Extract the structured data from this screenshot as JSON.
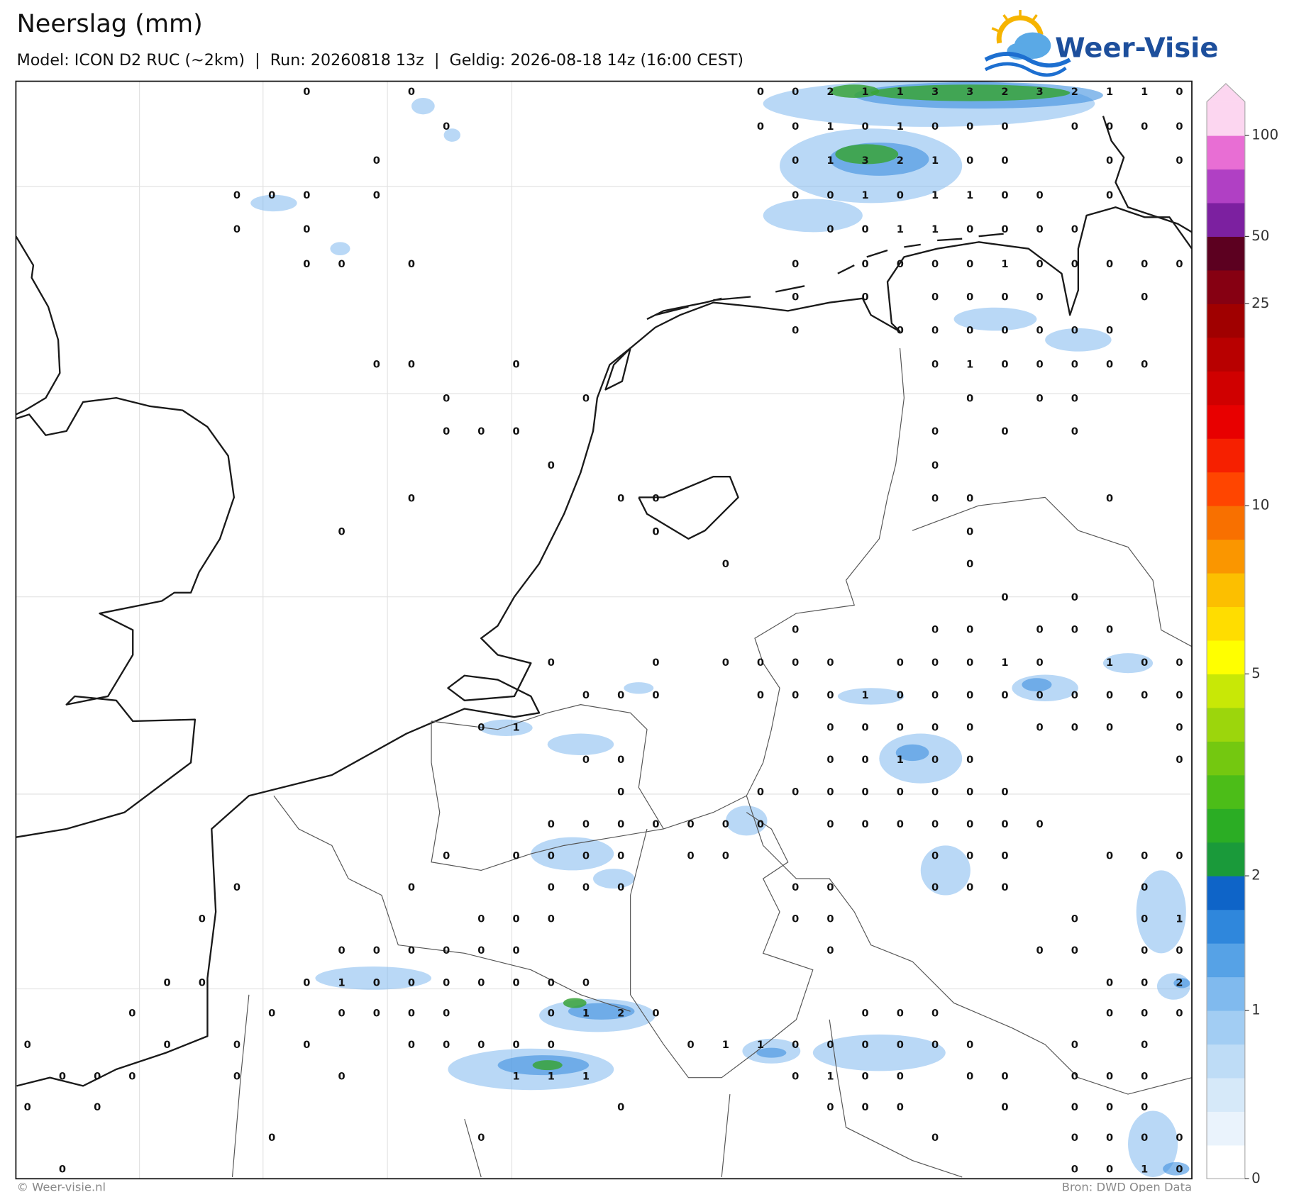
{
  "header": {
    "title": "Neerslag (mm)",
    "subtitle": "Model: ICON D2 RUC (~2km)  |  Run: 20260818 13z  |  Geldig: 2026-08-18 14z (16:00 CEST)"
  },
  "logo": "Weer-Visie",
  "map": {
    "stations": [
      [
        null,
        null,
        null,
        null,
        null,
        null,
        null,
        null,
        0,
        null,
        null,
        0,
        null,
        null,
        null,
        null,
        null,
        null,
        null,
        null,
        null,
        0,
        0,
        2,
        1,
        1,
        3,
        3,
        2,
        3,
        2,
        1,
        1,
        0
      ],
      [
        null,
        null,
        null,
        null,
        null,
        null,
        null,
        null,
        null,
        null,
        null,
        null,
        0,
        null,
        null,
        null,
        null,
        null,
        null,
        null,
        null,
        0,
        0,
        1,
        0,
        1,
        0,
        0,
        0,
        null,
        0,
        0,
        0,
        0
      ],
      [
        null,
        null,
        null,
        null,
        null,
        null,
        null,
        null,
        null,
        null,
        0,
        null,
        null,
        null,
        null,
        null,
        null,
        null,
        null,
        null,
        null,
        null,
        0,
        1,
        3,
        2,
        1,
        0,
        0,
        null,
        null,
        0,
        null,
        0
      ],
      [
        null,
        null,
        null,
        null,
        null,
        null,
        0,
        0,
        0,
        null,
        0,
        null,
        null,
        null,
        null,
        null,
        null,
        null,
        null,
        null,
        null,
        null,
        0,
        0,
        1,
        0,
        1,
        1,
        0,
        0,
        null,
        0,
        null,
        null
      ],
      [
        null,
        null,
        null,
        null,
        null,
        null,
        0,
        null,
        0,
        null,
        null,
        null,
        null,
        null,
        null,
        null,
        null,
        null,
        null,
        null,
        null,
        null,
        null,
        0,
        0,
        1,
        1,
        0,
        0,
        0,
        0,
        null,
        null,
        null
      ],
      [
        null,
        null,
        null,
        null,
        null,
        null,
        null,
        null,
        0,
        0,
        null,
        0,
        null,
        null,
        null,
        null,
        null,
        null,
        null,
        null,
        null,
        null,
        0,
        null,
        0,
        0,
        0,
        0,
        1,
        0,
        0,
        0,
        0,
        0
      ],
      [
        null,
        null,
        null,
        null,
        null,
        null,
        null,
        null,
        null,
        null,
        null,
        null,
        null,
        null,
        null,
        null,
        null,
        null,
        null,
        null,
        null,
        null,
        0,
        null,
        0,
        null,
        0,
        0,
        0,
        0,
        null,
        null,
        0,
        null
      ],
      [
        null,
        null,
        null,
        null,
        null,
        null,
        null,
        null,
        null,
        null,
        null,
        null,
        null,
        null,
        null,
        null,
        null,
        null,
        null,
        null,
        null,
        null,
        0,
        null,
        null,
        0,
        0,
        0,
        0,
        0,
        0,
        0,
        null,
        null
      ],
      [
        null,
        null,
        null,
        null,
        null,
        null,
        null,
        null,
        null,
        null,
        0,
        0,
        null,
        null,
        0,
        null,
        null,
        null,
        null,
        null,
        null,
        null,
        null,
        null,
        null,
        null,
        0,
        1,
        0,
        0,
        0,
        0,
        0,
        null
      ],
      [
        null,
        null,
        null,
        null,
        null,
        null,
        null,
        null,
        null,
        null,
        null,
        null,
        0,
        null,
        null,
        null,
        0,
        null,
        null,
        null,
        null,
        null,
        null,
        null,
        null,
        null,
        null,
        0,
        null,
        0,
        0,
        null,
        null,
        null
      ],
      [
        null,
        null,
        null,
        null,
        null,
        null,
        null,
        null,
        null,
        null,
        null,
        null,
        0,
        0,
        0,
        null,
        null,
        null,
        null,
        null,
        null,
        null,
        null,
        null,
        null,
        null,
        0,
        null,
        0,
        null,
        0,
        null,
        null,
        null
      ],
      [
        null,
        null,
        null,
        null,
        null,
        null,
        null,
        null,
        null,
        null,
        null,
        null,
        null,
        null,
        null,
        0,
        null,
        null,
        null,
        null,
        null,
        null,
        null,
        null,
        null,
        null,
        0,
        null,
        null,
        null,
        null,
        null,
        null,
        null
      ],
      [
        null,
        null,
        null,
        null,
        null,
        null,
        null,
        null,
        null,
        null,
        null,
        0,
        null,
        null,
        null,
        null,
        null,
        0,
        0,
        null,
        null,
        null,
        null,
        null,
        null,
        null,
        0,
        0,
        null,
        null,
        null,
        0,
        null,
        null
      ],
      [
        null,
        null,
        null,
        null,
        null,
        null,
        null,
        null,
        null,
        0,
        null,
        null,
        null,
        null,
        null,
        null,
        null,
        null,
        0,
        null,
        null,
        null,
        null,
        null,
        null,
        null,
        null,
        0,
        null,
        null,
        null,
        null,
        null,
        null
      ],
      [
        null,
        null,
        null,
        null,
        null,
        null,
        null,
        null,
        null,
        null,
        null,
        null,
        null,
        null,
        null,
        null,
        null,
        null,
        null,
        null,
        0,
        null,
        null,
        null,
        null,
        null,
        null,
        0,
        null,
        null,
        null,
        null,
        null,
        null
      ],
      [
        null,
        null,
        null,
        null,
        null,
        null,
        null,
        null,
        null,
        null,
        null,
        null,
        null,
        null,
        null,
        null,
        null,
        null,
        null,
        null,
        null,
        null,
        null,
        null,
        null,
        null,
        null,
        null,
        0,
        null,
        0,
        null,
        null,
        null
      ],
      [
        null,
        null,
        null,
        null,
        null,
        null,
        null,
        null,
        null,
        null,
        null,
        null,
        null,
        null,
        null,
        null,
        null,
        null,
        null,
        null,
        null,
        null,
        0,
        null,
        null,
        null,
        0,
        0,
        null,
        0,
        0,
        0,
        null,
        null
      ],
      [
        null,
        null,
        null,
        null,
        null,
        null,
        null,
        null,
        null,
        null,
        null,
        null,
        null,
        null,
        null,
        0,
        null,
        null,
        0,
        null,
        0,
        0,
        0,
        0,
        null,
        0,
        0,
        0,
        1,
        0,
        null,
        1,
        0,
        0
      ],
      [
        null,
        null,
        null,
        null,
        null,
        null,
        null,
        null,
        null,
        null,
        null,
        null,
        null,
        null,
        null,
        null,
        0,
        0,
        0,
        null,
        null,
        0,
        0,
        0,
        1,
        0,
        0,
        0,
        0,
        0,
        0,
        0,
        0,
        0
      ],
      [
        null,
        null,
        null,
        null,
        null,
        null,
        null,
        null,
        null,
        null,
        null,
        null,
        null,
        0,
        1,
        null,
        null,
        null,
        null,
        null,
        null,
        null,
        null,
        0,
        0,
        0,
        0,
        0,
        null,
        0,
        0,
        0,
        null,
        0
      ],
      [
        null,
        null,
        null,
        null,
        null,
        null,
        null,
        null,
        null,
        null,
        null,
        null,
        null,
        null,
        null,
        null,
        0,
        0,
        null,
        null,
        null,
        null,
        null,
        0,
        0,
        1,
        0,
        0,
        null,
        null,
        null,
        null,
        null,
        0
      ],
      [
        null,
        null,
        null,
        null,
        null,
        null,
        null,
        null,
        null,
        null,
        null,
        null,
        null,
        null,
        null,
        null,
        null,
        0,
        null,
        null,
        null,
        0,
        0,
        0,
        0,
        0,
        0,
        0,
        0,
        null,
        null,
        null,
        null,
        null
      ],
      [
        null,
        null,
        null,
        null,
        null,
        null,
        null,
        null,
        null,
        null,
        null,
        null,
        null,
        null,
        null,
        0,
        0,
        0,
        0,
        0,
        0,
        0,
        null,
        0,
        0,
        0,
        0,
        0,
        0,
        0,
        null,
        null,
        null,
        null
      ],
      [
        null,
        null,
        null,
        null,
        null,
        null,
        null,
        null,
        null,
        null,
        null,
        null,
        0,
        null,
        0,
        0,
        0,
        0,
        null,
        0,
        0,
        null,
        null,
        null,
        null,
        null,
        0,
        0,
        0,
        null,
        null,
        0,
        0,
        0
      ],
      [
        null,
        null,
        null,
        null,
        null,
        null,
        0,
        null,
        null,
        null,
        null,
        0,
        null,
        null,
        null,
        0,
        0,
        0,
        null,
        null,
        null,
        null,
        0,
        0,
        null,
        null,
        0,
        0,
        0,
        null,
        null,
        null,
        0,
        null
      ],
      [
        null,
        null,
        null,
        null,
        null,
        0,
        null,
        null,
        null,
        null,
        null,
        null,
        null,
        0,
        0,
        0,
        null,
        null,
        null,
        null,
        null,
        null,
        0,
        0,
        null,
        null,
        null,
        null,
        null,
        null,
        0,
        null,
        0,
        1
      ],
      [
        null,
        null,
        null,
        null,
        null,
        null,
        null,
        null,
        null,
        0,
        0,
        0,
        0,
        0,
        0,
        null,
        null,
        null,
        null,
        null,
        null,
        null,
        null,
        0,
        null,
        null,
        null,
        null,
        null,
        0,
        0,
        null,
        0,
        0
      ],
      [
        null,
        null,
        null,
        null,
        0,
        0,
        null,
        null,
        0,
        1,
        0,
        0,
        0,
        0,
        0,
        0,
        0,
        null,
        null,
        null,
        null,
        null,
        null,
        null,
        null,
        null,
        null,
        null,
        null,
        null,
        null,
        0,
        0,
        2
      ],
      [
        null,
        null,
        null,
        0,
        null,
        null,
        null,
        0,
        null,
        0,
        0,
        0,
        0,
        null,
        null,
        0,
        1,
        2,
        0,
        null,
        null,
        null,
        null,
        null,
        0,
        0,
        0,
        null,
        null,
        null,
        null,
        0,
        0,
        0
      ],
      [
        0,
        null,
        null,
        null,
        0,
        null,
        0,
        null,
        0,
        null,
        null,
        0,
        0,
        0,
        0,
        0,
        null,
        null,
        null,
        0,
        1,
        1,
        0,
        0,
        0,
        0,
        0,
        0,
        null,
        null,
        0,
        null,
        0,
        null
      ],
      [
        null,
        0,
        0,
        0,
        null,
        null,
        0,
        null,
        null,
        0,
        null,
        null,
        null,
        null,
        1,
        1,
        1,
        null,
        null,
        null,
        null,
        null,
        0,
        1,
        0,
        0,
        null,
        0,
        0,
        null,
        0,
        0,
        0,
        null
      ],
      [
        0,
        null,
        0,
        null,
        null,
        null,
        null,
        null,
        null,
        null,
        null,
        null,
        null,
        null,
        null,
        null,
        null,
        0,
        null,
        null,
        null,
        null,
        null,
        0,
        0,
        0,
        null,
        null,
        0,
        null,
        0,
        0,
        0,
        null
      ],
      [
        null,
        null,
        null,
        null,
        null,
        null,
        null,
        0,
        null,
        null,
        null,
        null,
        null,
        0,
        null,
        null,
        null,
        null,
        null,
        null,
        null,
        null,
        null,
        null,
        null,
        null,
        0,
        null,
        null,
        null,
        0,
        0,
        0,
        0
      ],
      [
        null,
        0,
        null,
        null,
        null,
        null,
        null,
        null,
        null,
        null,
        null,
        null,
        null,
        null,
        null,
        null,
        null,
        null,
        null,
        null,
        null,
        null,
        null,
        null,
        null,
        null,
        null,
        null,
        null,
        null,
        0,
        0,
        1,
        0
      ]
    ]
  },
  "colorbar": {
    "ticks": [
      0,
      1,
      2,
      5,
      10,
      25,
      50,
      100
    ],
    "colors": [
      "#ffffff",
      "#eaf3fc",
      "#d6e9f9",
      "#bedcf6",
      "#a2cdf3",
      "#80baee",
      "#56a2e6",
      "#2f87dc",
      "#0e64c8",
      "#1a9a3a",
      "#2bad24",
      "#4cbd18",
      "#74c810",
      "#9cd60c",
      "#c8e806",
      "#ffff00",
      "#ffdd00",
      "#fcbf00",
      "#fa9600",
      "#f87000",
      "#ff4500",
      "#f62000",
      "#e80000",
      "#d00000",
      "#b80000",
      "#a00000",
      "#860012",
      "#5c0020",
      "#7c20a0",
      "#b040c4",
      "#e86ed4",
      "#fcd6f0"
    ],
    "arrow_color": "#fcd6f0"
  },
  "footer": {
    "left": "© Weer-visie.nl",
    "right": "Bron: DWD Open Data"
  }
}
